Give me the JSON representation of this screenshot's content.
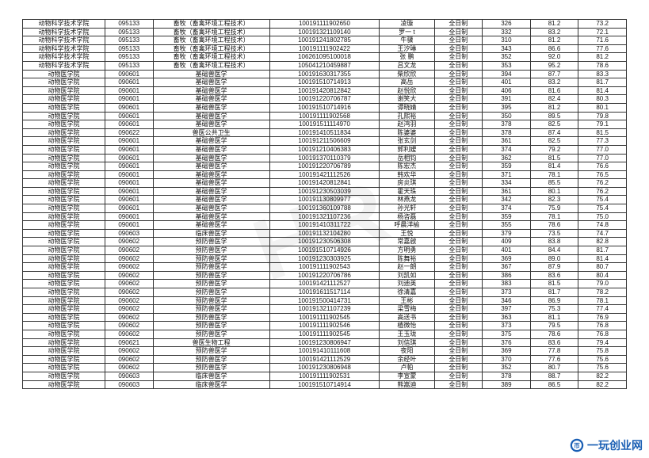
{
  "table": {
    "col_widths": [
      "12%",
      "7%",
      "17%",
      "16%",
      "8%",
      "7%",
      "7%",
      "7%",
      "7%"
    ],
    "rows": [
      [
        "动物科学技术学院",
        "095133",
        "畜牧（畜禽环境工程技术）",
        "100191111902650",
        "凌璇",
        "全日制",
        "326",
        "81.2",
        "73.2"
      ],
      [
        "动物科学技术学院",
        "095133",
        "畜牧（畜禽环境工程技术）",
        "100191321109140",
        "罗一 t",
        "全日制",
        "332",
        "83.2",
        "72.1"
      ],
      [
        "动物科学技术学院",
        "095133",
        "畜牧（畜禽环境工程技术）",
        "100191241802785",
        "牛骥",
        "全日制",
        "310",
        "81.2",
        "71.6"
      ],
      [
        "动物科学技术学院",
        "095133",
        "畜牧（畜禽环境工程技术）",
        "100191111902422",
        "王汐琳",
        "全日制",
        "343",
        "86.6",
        "77.6"
      ],
      [
        "动物科学技术学院",
        "095133",
        "畜牧（畜禽环境工程技术）",
        "106261095100018",
        "张 鹏",
        "全日制",
        "352",
        "92.0",
        "81.2"
      ],
      [
        "动物科学技术学院",
        "095133",
        "畜牧（畜禽环境工程技术）",
        "105041210459887",
        "吕文龙",
        "全日制",
        "353",
        "95.2",
        "78.6"
      ],
      [
        "动物医学院",
        "090601",
        "基础兽医学",
        "100191630317355",
        "柴欣欣",
        "全日制",
        "394",
        "87.7",
        "83.3"
      ],
      [
        "动物医学院",
        "090601",
        "基础兽医学",
        "100191510714913",
        "高岳",
        "全日制",
        "401",
        "83.2",
        "81.7"
      ],
      [
        "动物医学院",
        "090601",
        "基础兽医学",
        "100191420812842",
        "赵悦欣",
        "全日制",
        "406",
        "81.6",
        "81.4"
      ],
      [
        "动物医学院",
        "090601",
        "基础兽医学",
        "100191220706787",
        "谢笑大",
        "全日制",
        "391",
        "82.4",
        "80.3"
      ],
      [
        "动物医学院",
        "090601",
        "基础兽医学",
        "100191510714916",
        "谭晓婧",
        "全日制",
        "395",
        "81.2",
        "80.1"
      ],
      [
        "动物医学院",
        "090601",
        "基础兽医学",
        "100191111902568",
        "孔熙裕",
        "全日制",
        "350",
        "89.5",
        "79.8"
      ],
      [
        "动物医学院",
        "090601",
        "基础兽医学",
        "100191511114970",
        "赵鸿羽",
        "全日制",
        "378",
        "82.5",
        "79.1"
      ],
      [
        "动物医学院",
        "090622",
        "兽医公共卫生",
        "100191410511834",
        "陈婆婆",
        "全日制",
        "378",
        "87.4",
        "81.5"
      ],
      [
        "动物医学院",
        "090601",
        "基础兽医学",
        "100191211506609",
        "张玄剑",
        "全日制",
        "361",
        "82.5",
        "77.3"
      ],
      [
        "动物医学院",
        "090601",
        "基础兽医学",
        "100191210406383",
        "郭利嫒",
        "全日制",
        "374",
        "79.2",
        "77.0"
      ],
      [
        "动物医学院",
        "090601",
        "基础兽医学",
        "100191370110379",
        "岳相钧",
        "全日制",
        "362",
        "81.5",
        "77.0"
      ],
      [
        "动物医学院",
        "090601",
        "基础兽医学",
        "100191220706789",
        "陈宏杰",
        "全日制",
        "359",
        "81.4",
        "76.6"
      ],
      [
        "动物医学院",
        "090601",
        "基础兽医学",
        "100191421112526",
        "韩欢华",
        "全日制",
        "371",
        "78.1",
        "76.5"
      ],
      [
        "动物医学院",
        "090601",
        "基础兽医学",
        "100191420812841",
        "房炎琪",
        "全日制",
        "334",
        "85.5",
        "76.2"
      ],
      [
        "动物医学院",
        "090601",
        "基础兽医学",
        "100191230503039",
        "霍天珠",
        "全日制",
        "361",
        "80.1",
        "76.2"
      ],
      [
        "动物医学院",
        "090601",
        "基础兽医学",
        "100191130809977",
        "林燕龙",
        "全日制",
        "342",
        "82.3",
        "75.4"
      ],
      [
        "动物医学院",
        "090601",
        "基础兽医学",
        "100191360109788",
        "孙光轩",
        "全日制",
        "374",
        "75.9",
        "75.4"
      ],
      [
        "动物医学院",
        "090601",
        "基础兽医学",
        "100191321107236",
        "杨咨磊",
        "全日制",
        "359",
        "78.1",
        "75.0"
      ],
      [
        "动物医学院",
        "090601",
        "基础兽医学",
        "100191410311722",
        "呼晨洋榆",
        "全日制",
        "355",
        "78.6",
        "74.8"
      ],
      [
        "动物医学院",
        "090603",
        "临床兽医学",
        "100191132104280",
        "王悦",
        "全日制",
        "379",
        "73.5",
        "74.7"
      ],
      [
        "动物医学院",
        "090602",
        "预防兽医学",
        "100191230506308",
        "常嘉啟",
        "全日制",
        "409",
        "83.8",
        "82.8"
      ],
      [
        "动物医学院",
        "090602",
        "预防兽医学",
        "100191510714926",
        "方明勇",
        "全日制",
        "401",
        "84.4",
        "81.7"
      ],
      [
        "动物医学院",
        "090602",
        "预防兽医学",
        "100191230303925",
        "陈舞裕",
        "全日制",
        "369",
        "89.0",
        "81.4"
      ],
      [
        "动物医学院",
        "090602",
        "预防兽医学",
        "100191111902543",
        "赵一朗",
        "全日制",
        "367",
        "87.9",
        "80.7"
      ],
      [
        "动物医学院",
        "090602",
        "预防兽医学",
        "100191220706786",
        "刘凯如",
        "全日制",
        "386",
        "83.6",
        "80.4"
      ],
      [
        "动物医学院",
        "090602",
        "预防兽医学",
        "100191421112527",
        "刘迪英",
        "全日制",
        "383",
        "81.5",
        "79.0"
      ],
      [
        "动物医学院",
        "090602",
        "预防兽医学",
        "100191611517114",
        "徐清嘉",
        "全日制",
        "373",
        "81.7",
        "78.2"
      ],
      [
        "动物医学院",
        "090602",
        "预防兽医学",
        "100191500414731",
        "王彬",
        "全日制",
        "346",
        "86.9",
        "78.1"
      ],
      [
        "动物医学院",
        "090602",
        "预防兽医学",
        "100191321107239",
        "梁雪梅",
        "全日制",
        "397",
        "75.3",
        "77.4"
      ],
      [
        "动物医学院",
        "090602",
        "预防兽医学",
        "100191111902545",
        "高送书",
        "全日制",
        "363",
        "81.1",
        "76.9"
      ],
      [
        "动物医学院",
        "090602",
        "预防兽医学",
        "100191111902546",
        "植微怡",
        "全日制",
        "373",
        "79.5",
        "76.8"
      ],
      [
        "动物医学院",
        "090602",
        "预防兽医学",
        "100191111902545",
        "王玉珑",
        "全日制",
        "375",
        "78.6",
        "76.8"
      ],
      [
        "动物医学院",
        "090621",
        "兽医生物工程",
        "100191230806947",
        "刘信琪",
        "全日制",
        "376",
        "83.6",
        "79.4"
      ],
      [
        "动物医学院",
        "090602",
        "预防兽医学",
        "100191410111608",
        "夜阳",
        "全日制",
        "369",
        "77.8",
        "75.8"
      ],
      [
        "动物医学院",
        "090602",
        "预防兽医学",
        "100191421112529",
        "余经叶",
        "全日制",
        "370",
        "77.6",
        "75.6"
      ],
      [
        "动物医学院",
        "090602",
        "预防兽医学",
        "100191230806948",
        "卢帕",
        "全日制",
        "352",
        "80.7",
        "75.6"
      ],
      [
        "动物医学院",
        "090603",
        "临床兽医学",
        "100191111902531",
        "李宣蒙",
        "全日制",
        "378",
        "88.7",
        "82.2"
      ],
      [
        "动物医学院",
        "090603",
        "临床兽医学",
        "100191510714914",
        "熊嵩迪",
        "全日制",
        "389",
        "86.5",
        "82.2"
      ]
    ]
  },
  "watermark_text": "HR",
  "brand": {
    "text": "一玩创业网",
    "color": "#1a5fb4"
  }
}
